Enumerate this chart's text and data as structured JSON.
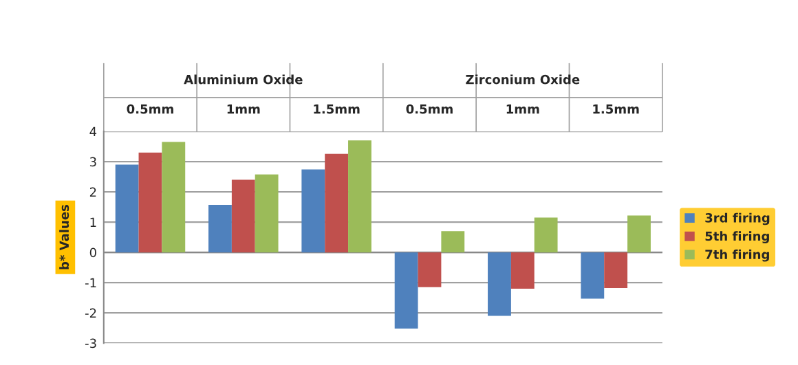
{
  "chart_data": {
    "type": "bar",
    "ylabel": "b* Values",
    "categories": [
      "0.5mm",
      "1mm",
      "1.5mm",
      "0.5mm",
      "1mm",
      "1.5mm"
    ],
    "annotations": [
      "Aluminium Oxide",
      "Zirconium Oxide"
    ],
    "series": [
      {
        "name": "3rd firing",
        "color": "#4f81bd",
        "values": [
          2.9,
          1.57,
          2.74,
          -2.52,
          -2.1,
          -1.53
        ]
      },
      {
        "name": "5th firing",
        "color": "#c0504d",
        "values": [
          3.3,
          2.4,
          3.26,
          -1.15,
          -1.2,
          -1.18
        ]
      },
      {
        "name": "7th firing",
        "color": "#9bbb59",
        "values": [
          3.65,
          2.58,
          3.7,
          0.7,
          1.15,
          1.22
        ]
      }
    ],
    "ylim": [
      -3,
      4
    ],
    "yticks": [
      -3,
      -2,
      -1,
      0,
      1,
      2,
      3,
      4
    ],
    "grid": "y",
    "legend": "right"
  }
}
